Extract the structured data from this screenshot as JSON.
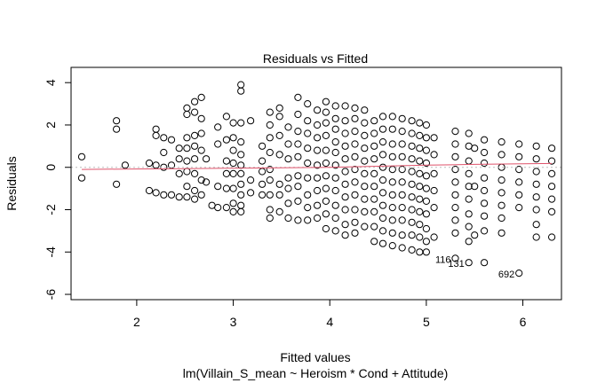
{
  "chart_data": {
    "type": "scatter",
    "title": "Residuals vs Fitted",
    "xlabel": "Fitted values",
    "subtitle": "lm(Villain_S_mean ~ Heroism * Cond + Attitude)",
    "ylabel": "Residuals",
    "xlim": [
      1.32,
      6.4
    ],
    "ylim": [
      -6.25,
      4.72
    ],
    "x_ticks": [
      2,
      3,
      4,
      5,
      6
    ],
    "y_ticks": [
      -6,
      -4,
      -2,
      0,
      2,
      4
    ],
    "grid": false,
    "reference_line": 0,
    "colors": {
      "points": "#000000",
      "smoother": "#df536b",
      "reference": "#bbbbbb"
    },
    "columns": [
      {
        "x": 1.43,
        "y": [
          0.5,
          -0.5
        ]
      },
      {
        "x": 1.79,
        "y": [
          2.2,
          1.8,
          -0.8
        ]
      },
      {
        "x": 1.88,
        "y": [
          0.1
        ]
      },
      {
        "x": 2.13,
        "y": [
          0.2,
          -1.1
        ]
      },
      {
        "x": 2.2,
        "y": [
          1.8,
          1.5,
          0.1,
          -1.2
        ]
      },
      {
        "x": 2.28,
        "y": [
          1.4,
          0.7,
          0.0,
          -1.3
        ]
      },
      {
        "x": 2.36,
        "y": [
          1.3,
          0.1,
          -1.3
        ]
      },
      {
        "x": 2.44,
        "y": [
          0.9,
          0.4,
          -0.3,
          -1.4
        ]
      },
      {
        "x": 2.52,
        "y": [
          2.8,
          2.5,
          1.4,
          0.9,
          0.3,
          -0.2,
          -0.9,
          -1.4
        ]
      },
      {
        "x": 2.6,
        "y": [
          3.1,
          2.6,
          1.5,
          1.0,
          0.4,
          -0.3,
          -1.1,
          -1.5
        ]
      },
      {
        "x": 2.67,
        "y": [
          3.3,
          2.3,
          1.6,
          0.8,
          -0.6,
          -1.3
        ]
      },
      {
        "x": 2.72,
        "y": [
          0.4,
          -0.7
        ]
      },
      {
        "x": 2.78,
        "y": [
          -1.8
        ]
      },
      {
        "x": 2.84,
        "y": [
          1.9,
          1.1,
          -0.9,
          -1.9
        ]
      },
      {
        "x": 2.93,
        "y": [
          2.4,
          1.3,
          0.3,
          -0.3,
          -1.0,
          -1.9
        ]
      },
      {
        "x": 3.0,
        "y": [
          2.1,
          1.4,
          0.8,
          0.2,
          -0.3,
          -1.0,
          -1.7,
          -2.1
        ]
      },
      {
        "x": 3.08,
        "y": [
          3.9,
          3.6,
          2.1,
          1.2,
          0.6,
          0.1,
          -0.3,
          -0.8,
          -1.3,
          -1.8,
          -2.1
        ]
      },
      {
        "x": 3.18,
        "y": [
          2.2,
          -0.6,
          -1.2
        ]
      },
      {
        "x": 3.3,
        "y": [
          1.0,
          0.3,
          -0.2,
          -0.8,
          -1.3
        ]
      },
      {
        "x": 3.38,
        "y": [
          2.6,
          2.0,
          1.4,
          0.7,
          -0.1,
          -0.6,
          -1.3,
          -2.0,
          -2.4
        ]
      },
      {
        "x": 3.48,
        "y": [
          2.8,
          2.4,
          1.5,
          0.6,
          -0.8,
          -1.3,
          -2.1
        ]
      },
      {
        "x": 3.57,
        "y": [
          1.9,
          1.1,
          0.4,
          -0.5,
          -1.0,
          -1.7,
          -2.4
        ]
      },
      {
        "x": 3.67,
        "y": [
          3.3,
          2.5,
          1.7,
          1.1,
          0.5,
          -0.4,
          -0.9,
          -1.6,
          -2.5
        ]
      },
      {
        "x": 3.77,
        "y": [
          3.0,
          2.2,
          1.6,
          0.9,
          0.2,
          -0.5,
          -1.3,
          -1.9,
          -2.5
        ]
      },
      {
        "x": 3.87,
        "y": [
          2.7,
          2.0,
          1.4,
          0.8,
          0.1,
          -0.5,
          -1.1,
          -1.8,
          -2.4
        ]
      },
      {
        "x": 3.96,
        "y": [
          3.1,
          2.6,
          2.1,
          1.5,
          0.8,
          0.2,
          -0.4,
          -1.0,
          -1.6,
          -2.2,
          -2.9
        ]
      },
      {
        "x": 4.06,
        "y": [
          2.9,
          2.3,
          1.8,
          1.2,
          0.7,
          0.1,
          -0.5,
          -1.1,
          -1.8,
          -2.4,
          -3.0
        ]
      },
      {
        "x": 4.16,
        "y": [
          2.9,
          2.2,
          1.6,
          1.0,
          0.4,
          -0.2,
          -0.8,
          -1.4,
          -2.0,
          -2.7,
          -3.2
        ]
      },
      {
        "x": 4.26,
        "y": [
          2.8,
          2.3,
          1.7,
          1.1,
          0.5,
          -0.1,
          -0.7,
          -1.3,
          -2.0,
          -2.6,
          -3.1
        ]
      },
      {
        "x": 4.36,
        "y": [
          2.7,
          2.1,
          1.5,
          0.9,
          0.3,
          -0.3,
          -0.9,
          -1.5,
          -2.1,
          -2.8
        ]
      },
      {
        "x": 4.46,
        "y": [
          2.2,
          1.6,
          1.0,
          0.4,
          -0.3,
          -0.9,
          -1.5,
          -2.1,
          -2.8,
          -3.5
        ]
      },
      {
        "x": 4.55,
        "y": [
          2.4,
          1.8,
          1.2,
          0.6,
          0.0,
          -0.6,
          -1.2,
          -1.8,
          -2.4,
          -3.0,
          -3.6
        ]
      },
      {
        "x": 4.65,
        "y": [
          2.4,
          1.8,
          1.1,
          0.5,
          -0.1,
          -0.7,
          -1.3,
          -1.9,
          -2.5,
          -3.1,
          -3.7
        ]
      },
      {
        "x": 4.75,
        "y": [
          2.3,
          1.7,
          1.1,
          0.5,
          -0.1,
          -0.7,
          -1.3,
          -1.9,
          -2.5,
          -3.2,
          -3.8
        ]
      },
      {
        "x": 4.85,
        "y": [
          2.2,
          1.6,
          1.0,
          0.4,
          -0.2,
          -0.8,
          -1.4,
          -2.0,
          -2.6,
          -3.2,
          -3.9
        ]
      },
      {
        "x": 4.93,
        "y": [
          2.1,
          1.5,
          0.9,
          0.3,
          -0.3,
          -0.9,
          -1.5,
          -2.1,
          -2.7,
          -3.3,
          -4.0
        ]
      },
      {
        "x": 5.0,
        "y": [
          2.0,
          1.4,
          0.8,
          0.2,
          -0.4,
          -1.0,
          -1.6,
          -2.2,
          -2.9,
          -3.5,
          -4.0
        ]
      },
      {
        "x": 5.08,
        "y": [
          1.4,
          0.6,
          -0.3,
          -1.1,
          -1.9,
          -3.3
        ]
      },
      {
        "x": 5.3,
        "y": [
          1.7,
          1.1,
          0.5,
          -0.1,
          -0.7,
          -1.3,
          -1.9,
          -2.5,
          -3.1,
          -4.3
        ]
      },
      {
        "x": 5.44,
        "y": [
          1.6,
          1.0,
          0.3,
          -0.3,
          -0.9,
          -1.5,
          -2.2,
          -2.8,
          -3.5,
          -4.5
        ]
      },
      {
        "x": 5.5,
        "y": [
          0.9,
          -0.9,
          -3.2
        ]
      },
      {
        "x": 5.6,
        "y": [
          1.3,
          0.7,
          0.2,
          -0.5,
          -1.1,
          -1.7,
          -2.3,
          -3.0,
          -4.5
        ]
      },
      {
        "x": 5.78,
        "y": [
          1.2,
          0.6,
          0.0,
          -0.6,
          -1.2,
          -1.8,
          -2.4,
          -3.1
        ]
      },
      {
        "x": 5.96,
        "y": [
          1.1,
          0.5,
          -0.1,
          -0.7,
          -1.3,
          -1.9,
          -5.0
        ]
      },
      {
        "x": 6.14,
        "y": [
          1.0,
          0.4,
          -0.2,
          -0.8,
          -1.4,
          -2.0,
          -2.7,
          -3.3
        ]
      },
      {
        "x": 6.3,
        "y": [
          0.9,
          0.3,
          -0.3,
          -0.9,
          -1.5,
          -2.1,
          -3.3
        ]
      }
    ],
    "smoother": [
      [
        1.43,
        -0.1
      ],
      [
        2.0,
        -0.08
      ],
      [
        2.5,
        -0.06
      ],
      [
        3.0,
        -0.04
      ],
      [
        3.5,
        -0.02
      ],
      [
        4.0,
        0.0
      ],
      [
        4.5,
        0.05
      ],
      [
        5.0,
        0.1
      ],
      [
        5.5,
        0.14
      ],
      [
        6.0,
        0.17
      ],
      [
        6.3,
        0.18
      ]
    ],
    "outliers": [
      {
        "label": "116",
        "x": 5.3,
        "y": -4.3
      },
      {
        "label": "131",
        "x": 5.44,
        "y": -4.5
      },
      {
        "label": "692",
        "x": 5.96,
        "y": -5.0
      }
    ]
  }
}
